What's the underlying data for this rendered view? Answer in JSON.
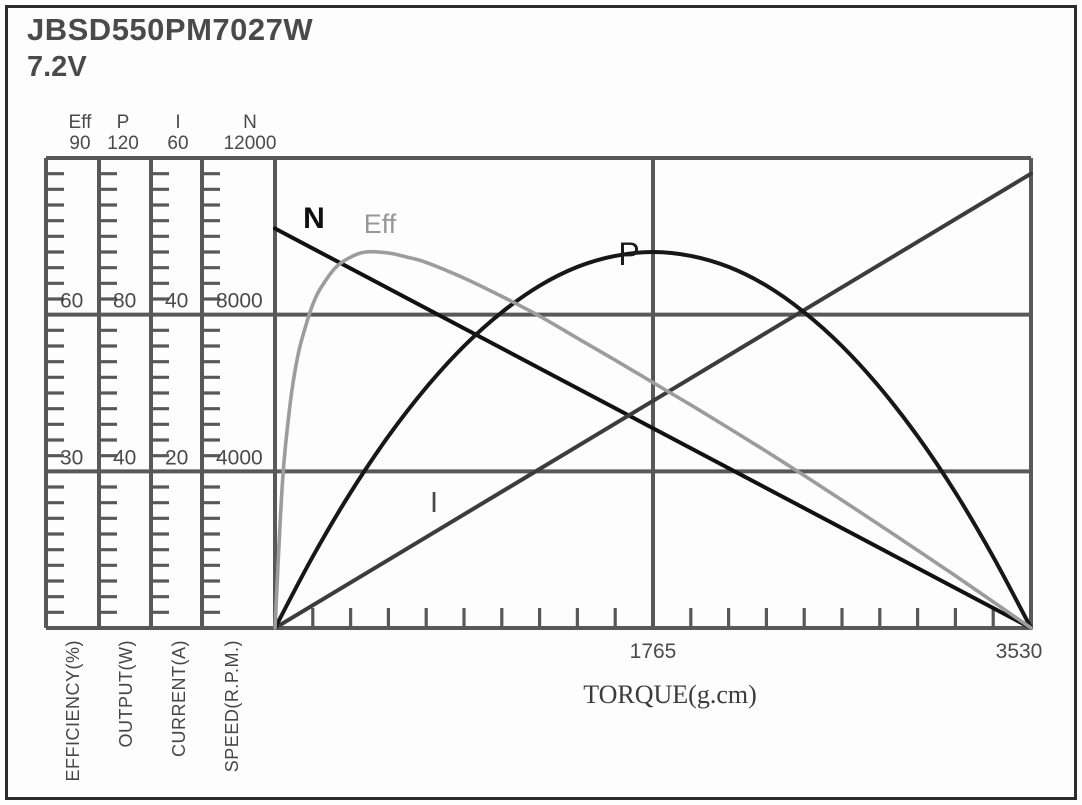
{
  "title": "JBSD550PM7027W",
  "voltage": "7.2V",
  "chart_data": {
    "type": "line",
    "x_axis": {
      "label": "TORQUE(g.cm)",
      "min": 0,
      "max": 3530,
      "tick_labels": [
        "1765",
        "3530"
      ],
      "minor_tick_count": 20
    },
    "y_axes": [
      {
        "name": "Eff",
        "label": "EFFICIENCY(%)",
        "max": 90,
        "majors": [
          60,
          30
        ]
      },
      {
        "name": "P",
        "label": "OUTPUT(W)",
        "max": 120,
        "majors": [
          80,
          40
        ]
      },
      {
        "name": "I",
        "label": "CURRENT(A)",
        "max": 60,
        "majors": [
          40,
          20
        ]
      },
      {
        "name": "N",
        "label": "SPEED(R.P.M.)",
        "max": 12000,
        "majors": [
          8000,
          4000
        ]
      }
    ],
    "ruler_minor_per_interval": 10,
    "grid_color": "#585858",
    "series": [
      {
        "name": "N",
        "axis": "N",
        "color": "#111111",
        "points": [
          [
            0,
            10200
          ],
          [
            3530,
            0
          ]
        ]
      },
      {
        "name": "I",
        "axis": "I",
        "color": "#3c3c3c",
        "points": [
          [
            0,
            0
          ],
          [
            3530,
            58
          ]
        ]
      },
      {
        "name": "P",
        "axis": "P",
        "color": "#171717",
        "points": [
          [
            0,
            0
          ],
          [
            176,
            18.2
          ],
          [
            353,
            34.6
          ],
          [
            530,
            49
          ],
          [
            706,
            61.4
          ],
          [
            883,
            72
          ],
          [
            1059,
            80.6
          ],
          [
            1236,
            87.4
          ],
          [
            1412,
            92.2
          ],
          [
            1588,
            95
          ],
          [
            1765,
            96
          ],
          [
            1942,
            95
          ],
          [
            2118,
            92.2
          ],
          [
            2295,
            87.4
          ],
          [
            2471,
            80.6
          ],
          [
            2647,
            72
          ],
          [
            2824,
            61.4
          ],
          [
            3000,
            49
          ],
          [
            3177,
            34.6
          ],
          [
            3353,
            18.2
          ],
          [
            3530,
            0
          ]
        ]
      },
      {
        "name": "Eff",
        "axis": "Eff",
        "color": "#9c9c9c",
        "points": [
          [
            0,
            0
          ],
          [
            35,
            28
          ],
          [
            71,
            43
          ],
          [
            106,
            52
          ],
          [
            141,
            57.5
          ],
          [
            177,
            62
          ],
          [
            212,
            65
          ],
          [
            282,
            69
          ],
          [
            353,
            71
          ],
          [
            424,
            72
          ],
          [
            530,
            71.8
          ],
          [
            618,
            71
          ],
          [
            706,
            70
          ],
          [
            883,
            67
          ],
          [
            1059,
            63.5
          ],
          [
            1236,
            59.7
          ],
          [
            1412,
            55.5
          ],
          [
            1588,
            51.3
          ],
          [
            1765,
            47
          ],
          [
            1942,
            42.7
          ],
          [
            2118,
            38.3
          ],
          [
            2295,
            33.8
          ],
          [
            2471,
            29.2
          ],
          [
            2647,
            24.5
          ],
          [
            2824,
            19.7
          ],
          [
            3000,
            14.9
          ],
          [
            3177,
            10
          ],
          [
            3354,
            5
          ],
          [
            3530,
            0
          ]
        ]
      }
    ]
  }
}
